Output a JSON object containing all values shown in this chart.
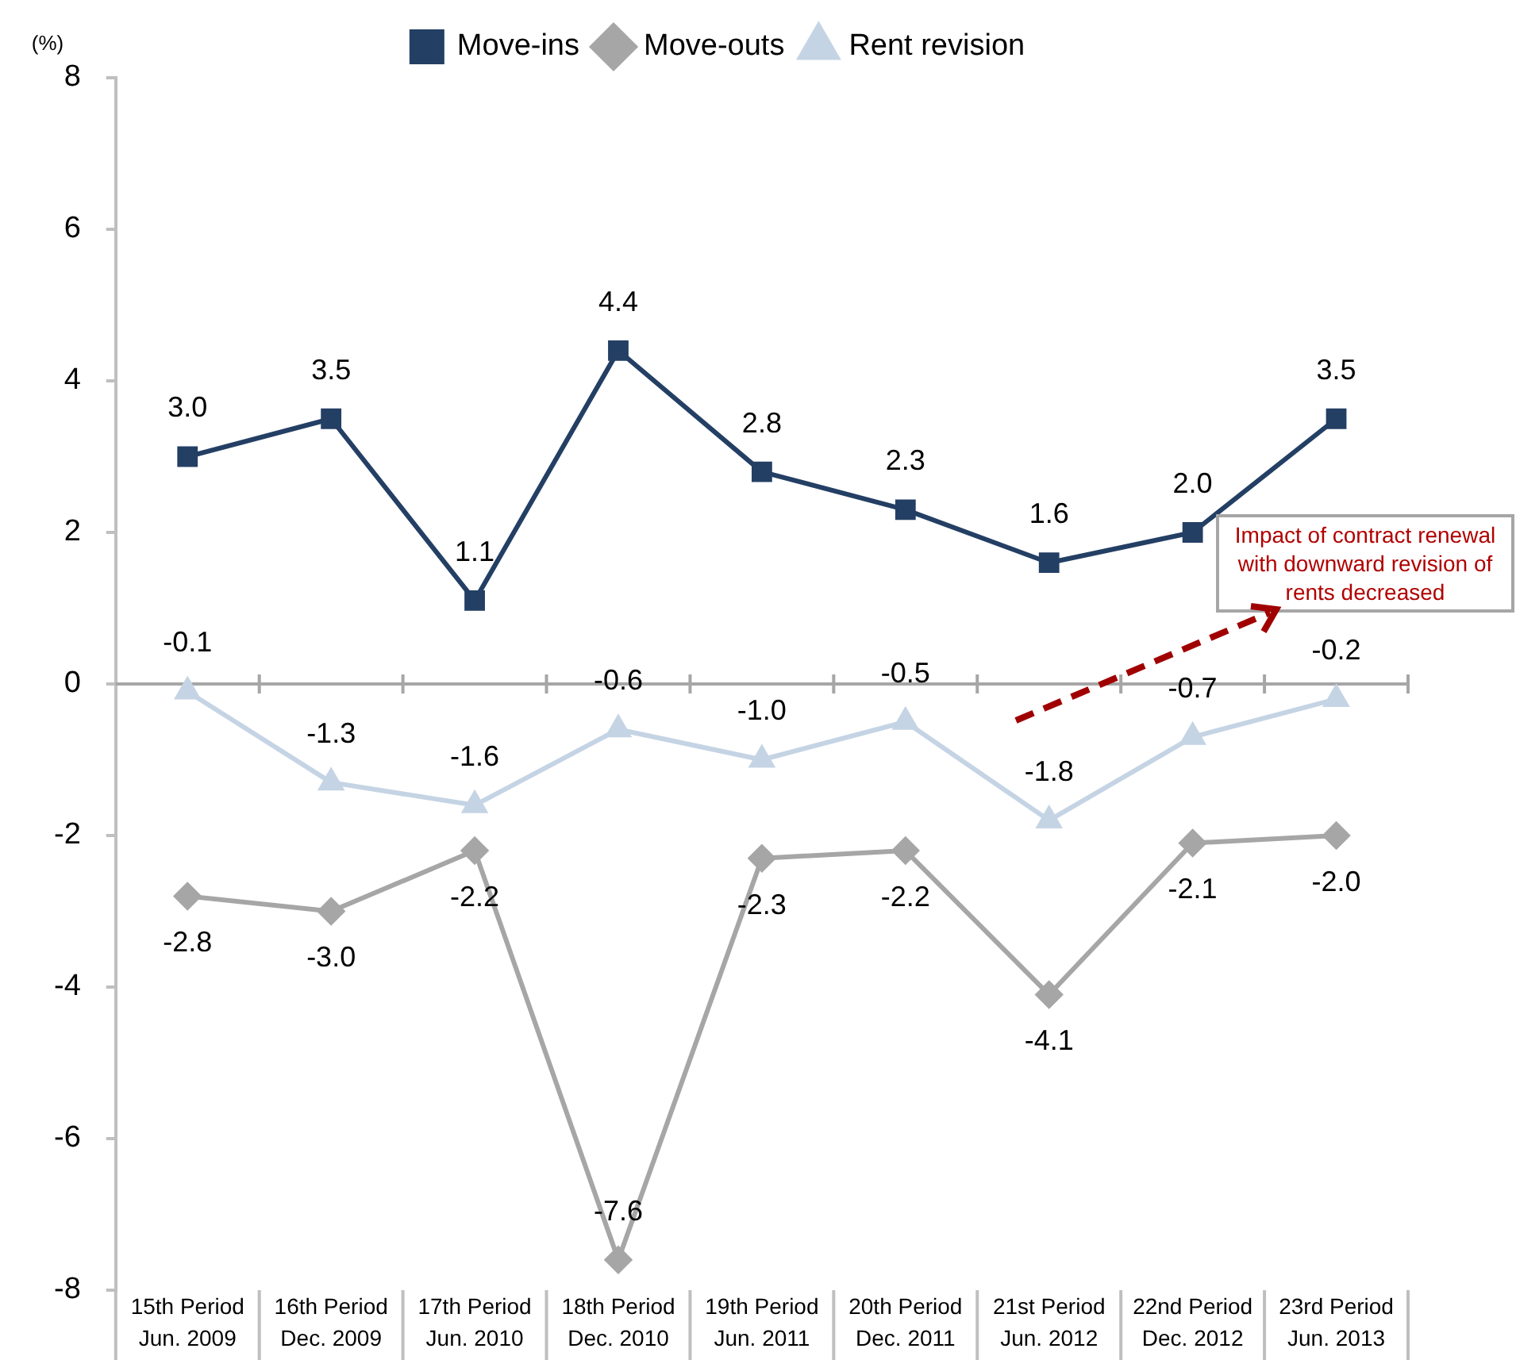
{
  "chart_data": {
    "type": "line",
    "ylabel": "(%)",
    "categories": [
      "15th Period\nJun. 2009",
      "16th Period\nDec. 2009",
      "17th Period\nJun. 2010",
      "18th Period\nDec. 2010",
      "19th Period\nJun. 2011",
      "20th Period\nDec. 2011",
      "21st Period\nJun. 2012",
      "22nd Period\nDec. 2012",
      "23rd Period\nJun. 2013"
    ],
    "series": [
      {
        "name": "Move-ins",
        "color": "#243f64",
        "marker": "square",
        "values": [
          3.0,
          3.5,
          1.1,
          4.4,
          2.8,
          2.3,
          1.6,
          2.0,
          3.5
        ],
        "value_labels": [
          "3.0",
          "3.5",
          "1.1",
          "4.4",
          "2.8",
          "2.3",
          "1.6",
          "2.0",
          "3.5"
        ]
      },
      {
        "name": "Move-outs",
        "color": "#a6a6a6",
        "marker": "diamond",
        "values": [
          -2.8,
          -3.0,
          -2.2,
          -7.6,
          -2.3,
          -2.2,
          -4.1,
          -2.1,
          -2.0
        ],
        "value_labels": [
          "-2.8",
          "-3.0",
          "-2.2",
          "-7.6",
          "-2.3",
          "-2.2",
          "-4.1",
          "-2.1",
          "-2.0"
        ]
      },
      {
        "name": "Rent revision",
        "color": "#c5d4e4",
        "marker": "triangle",
        "values": [
          -0.1,
          -1.3,
          -1.6,
          -0.6,
          -1.0,
          -0.5,
          -1.8,
          -0.7,
          -0.2
        ],
        "value_labels": [
          "-0.1",
          "-1.3",
          "-1.6",
          "-0.6",
          "-1.0",
          "-0.5",
          "-1.8",
          "-0.7",
          "-0.2"
        ]
      }
    ],
    "ylim": [
      -8,
      8
    ],
    "yticks": [
      -8,
      -6,
      -4,
      -2,
      0,
      2,
      4,
      6,
      8
    ],
    "ref_lines": [
      {
        "axis": "y",
        "value": 0,
        "color": "#a6a6a6"
      }
    ],
    "grid": false,
    "legend": "top",
    "line_style": "solid",
    "annotations": [
      "Impact of contract renewal with downward revision of rents decreased"
    ]
  }
}
